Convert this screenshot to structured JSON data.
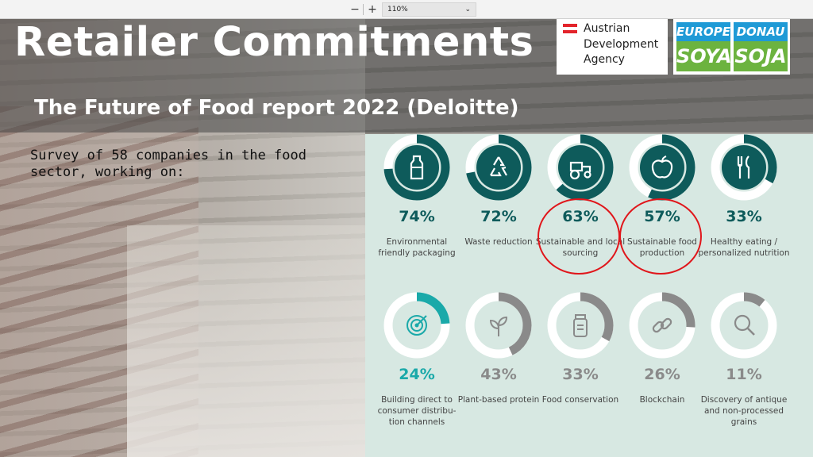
{
  "toolbar": {
    "zoom_out_label": "−",
    "zoom_in_label": "+",
    "zoom_value": "110%"
  },
  "slide": {
    "title": "Retailer Commitments",
    "subtitle": "The Future of Food report 2022 (Deloitte)",
    "survey_text": "Survey of 58 companies in the food sector, working on:"
  },
  "logos": {
    "ada": {
      "line1": "Austrian",
      "line2": "Development",
      "line3": "Agency"
    },
    "europe_soya": {
      "top": "EUROPE",
      "bottom": "SOYA"
    },
    "donau_soja": {
      "top": "DONAU",
      "bottom": "SOJA"
    }
  },
  "colors": {
    "dark_teal": "#0e5b5b",
    "turquoise": "#1aa9a9",
    "gray": "#8a8a8a",
    "highlight_red": "#e0161b",
    "panel_bg": "#d7e8e2"
  },
  "items": [
    {
      "percent": "74%",
      "value": 74,
      "label": "Environmental friendly packaging",
      "color": "dark_teal",
      "icon": "bottle-icon",
      "highlighted": false
    },
    {
      "percent": "72%",
      "value": 72,
      "label": "Waste reduction",
      "color": "dark_teal",
      "icon": "recycle-icon",
      "highlighted": false
    },
    {
      "percent": "63%",
      "value": 63,
      "label": "Sustainable and local sourcing",
      "color": "dark_teal",
      "icon": "tractor-icon",
      "highlighted": true
    },
    {
      "percent": "57%",
      "value": 57,
      "label": "Sustainable food production",
      "color": "dark_teal",
      "icon": "apple-icon",
      "highlighted": true
    },
    {
      "percent": "33%",
      "value": 33,
      "label": "Healthy eating / personalized nutrition",
      "color": "dark_teal",
      "icon": "cutlery-icon",
      "highlighted": false
    },
    {
      "percent": "24%",
      "value": 24,
      "label": "Building direct to consumer distribu-tion channels",
      "color": "turquoise",
      "icon": "target-icon",
      "highlighted": false
    },
    {
      "percent": "43%",
      "value": 43,
      "label": "Plant-based protein",
      "color": "gray",
      "icon": "leaf-icon",
      "highlighted": false
    },
    {
      "percent": "33%",
      "value": 33,
      "label": "Food conservation",
      "color": "gray",
      "icon": "jar-icon",
      "highlighted": false
    },
    {
      "percent": "26%",
      "value": 26,
      "label": "Blockchain",
      "color": "gray",
      "icon": "chain-icon",
      "highlighted": false
    },
    {
      "percent": "11%",
      "value": 11,
      "label": "Discovery of antique and non-processed grains",
      "color": "gray",
      "icon": "magnifier-icon",
      "highlighted": false
    }
  ]
}
